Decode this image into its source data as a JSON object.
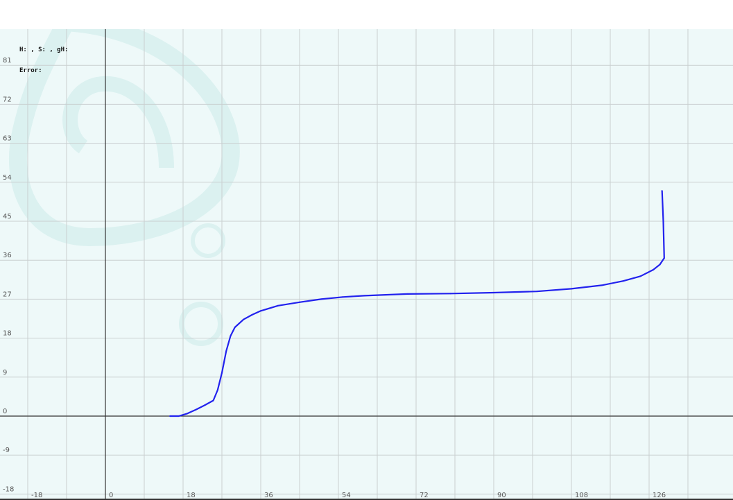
{
  "info": {
    "params_line": "H: , S: , gH:",
    "error_line": "Error:"
  },
  "colors": {
    "background": "#ffffff",
    "plot_bg": "#eef9f9",
    "grid": "#c9cfd0",
    "axis": "#333333",
    "curve": "#2222ee",
    "watermark": "#d9f1f0"
  },
  "chart_data": {
    "type": "line",
    "grid": true,
    "x_ticks": [
      "-18",
      "0",
      "18",
      "36",
      "54",
      "72",
      "90",
      "108",
      "126"
    ],
    "y_ticks": [
      "81",
      "72",
      "63",
      "54",
      "45",
      "36",
      "27",
      "18",
      "9",
      "0",
      "-9",
      "-18"
    ],
    "xlim": [
      -27,
      135
    ],
    "ylim": [
      -18,
      81
    ],
    "series": [
      {
        "x": [
          15,
          17,
          19,
          21,
          23,
          25,
          26,
          27,
          28,
          29,
          30,
          32,
          34,
          36,
          40,
          45,
          50,
          55,
          60,
          70,
          80,
          90,
          100,
          108,
          115,
          120,
          124,
          127,
          128.5,
          129.5,
          129.3,
          129
        ],
        "y": [
          0,
          0,
          0.6,
          1.5,
          2.5,
          3.6,
          6,
          10,
          15,
          18.5,
          20.5,
          22.3,
          23.4,
          24.3,
          25.5,
          26.3,
          27,
          27.5,
          27.8,
          28.2,
          28.3,
          28.5,
          28.8,
          29.4,
          30.2,
          31.2,
          32.3,
          33.8,
          35,
          36.5,
          45,
          52
        ]
      }
    ]
  }
}
